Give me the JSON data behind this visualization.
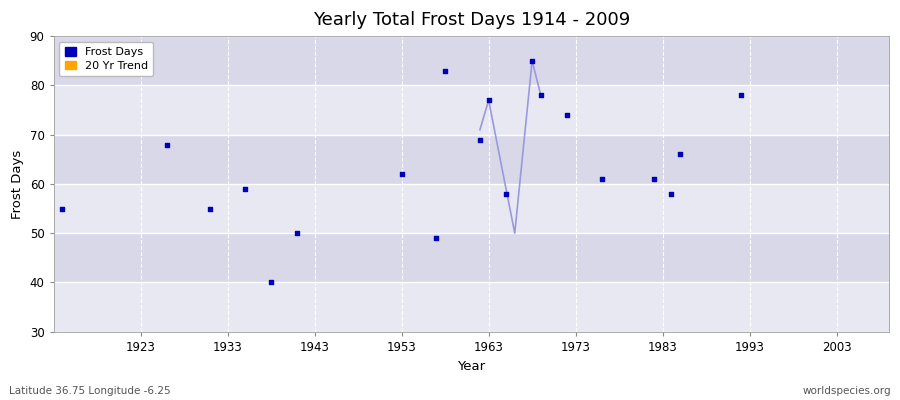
{
  "title": "Yearly Total Frost Days 1914 - 2009",
  "xlabel": "Year",
  "ylabel": "Frost Days",
  "xlim": [
    1913,
    2009
  ],
  "ylim": [
    30,
    90
  ],
  "yticks": [
    30,
    40,
    50,
    60,
    70,
    80,
    90
  ],
  "xticks": [
    1923,
    1933,
    1943,
    1953,
    1963,
    1973,
    1983,
    1993,
    2003
  ],
  "scatter_color": "#0000bb",
  "line_color": "#9999dd",
  "bg_color": "#e0e0ea",
  "band_color_light": "#e8e8f2",
  "band_color_dark": "#d8d8e8",
  "grid_color": "#ffffff",
  "scatter_points": [
    [
      1914,
      55
    ],
    [
      1926,
      68
    ],
    [
      1931,
      55
    ],
    [
      1935,
      59
    ],
    [
      1938,
      40
    ],
    [
      1941,
      50
    ],
    [
      1953,
      62
    ],
    [
      1957,
      49
    ],
    [
      1958,
      83
    ],
    [
      1962,
      69
    ],
    [
      1963,
      77
    ],
    [
      1965,
      58
    ],
    [
      1968,
      85
    ],
    [
      1969,
      78
    ],
    [
      1972,
      74
    ],
    [
      1976,
      61
    ],
    [
      1982,
      61
    ],
    [
      1984,
      58
    ],
    [
      1985,
      66
    ],
    [
      1992,
      78
    ]
  ],
  "trend_line_1": [
    [
      1962,
      71
    ],
    [
      1963,
      77
    ]
  ],
  "trend_line_2": [
    [
      1963,
      77
    ],
    [
      1966,
      50
    ],
    [
      1968,
      85
    ],
    [
      1969,
      78
    ]
  ],
  "footnote_left": "Latitude 36.75 Longitude -6.25",
  "footnote_right": "worldspecies.org",
  "legend_entries": [
    "Frost Days",
    "20 Yr Trend"
  ],
  "legend_colors": [
    "#0000bb",
    "#ffa500"
  ]
}
